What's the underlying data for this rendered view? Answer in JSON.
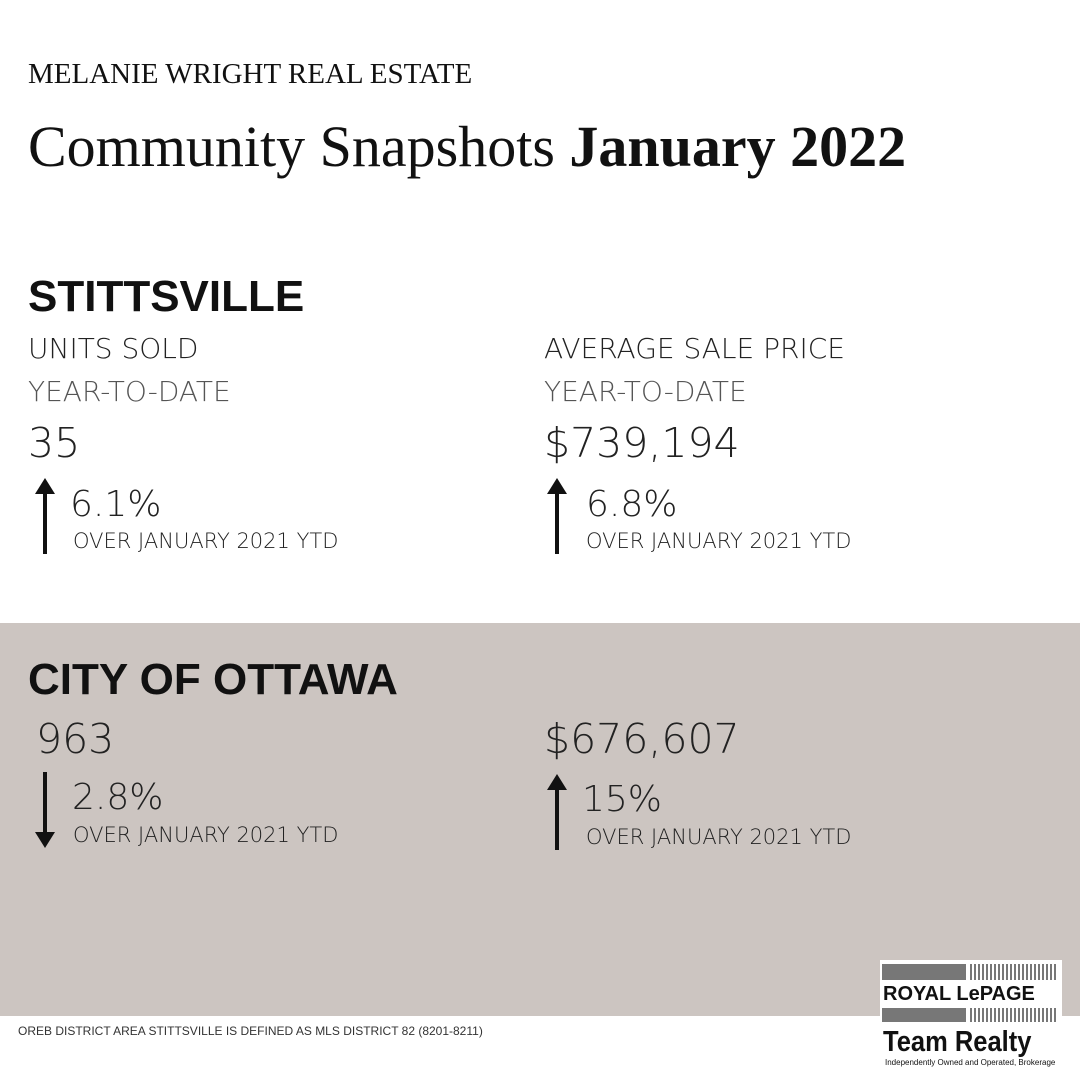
{
  "header": {
    "brand": "MELANIE WRIGHT REAL ESTATE",
    "title": "Community Snapshots",
    "title_emphasis": "January 2022"
  },
  "sections": [
    {
      "name": "STITTSVILLE",
      "stats": [
        {
          "label": "UNITS SOLD",
          "period": "YEAR-TO-DATE",
          "value": "35",
          "change": "6.1%",
          "trend": "up",
          "comparison": "OVER JANUARY 2021 YTD"
        },
        {
          "label": "AVERAGE SALE PRICE",
          "period": "YEAR-TO-DATE",
          "value": "$739,194",
          "change": "6.8%",
          "trend": "up",
          "comparison": "OVER JANUARY 2021 YTD"
        }
      ]
    },
    {
      "name": "CITY OF OTTAWA",
      "stats": [
        {
          "value": "963",
          "change": "2.8%",
          "trend": "down",
          "comparison": "OVER JANUARY 2021 YTD"
        },
        {
          "value": "$676,607",
          "change": "15%",
          "trend": "up",
          "comparison": "OVER JANUARY 2021 YTD"
        }
      ]
    }
  ],
  "footer": {
    "note": "OREB DISTRICT AREA STITTSVILLE IS DEFINED AS MLS DISTRICT 82 (8201-8211)",
    "logo": {
      "brand": "ROYAL LePAGE",
      "office": "Team Realty",
      "tagline": "Independently Owned and Operated, Brokerage"
    }
  }
}
